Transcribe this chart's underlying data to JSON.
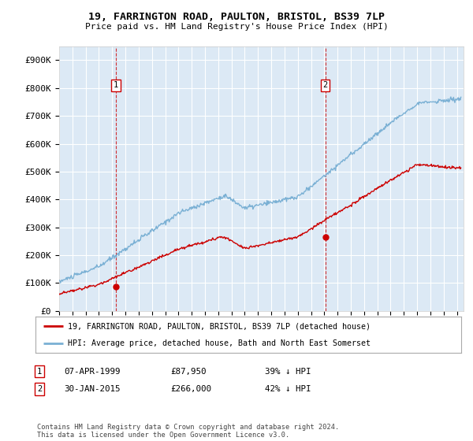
{
  "title1": "19, FARRINGTON ROAD, PAULTON, BRISTOL, BS39 7LP",
  "title2": "Price paid vs. HM Land Registry's House Price Index (HPI)",
  "ylabel_ticks": [
    "£0",
    "£100K",
    "£200K",
    "£300K",
    "£400K",
    "£500K",
    "£600K",
    "£700K",
    "£800K",
    "£900K"
  ],
  "ytick_values": [
    0,
    100000,
    200000,
    300000,
    400000,
    500000,
    600000,
    700000,
    800000,
    900000
  ],
  "ylim": [
    0,
    950000
  ],
  "xlim_start": 1995.0,
  "xlim_end": 2025.5,
  "background_color": "#dce9f5",
  "grid_color": "#ffffff",
  "red_line_color": "#cc0000",
  "blue_line_color": "#7ab0d4",
  "sale1_x": 1999.27,
  "sale1_y": 87950,
  "sale2_x": 2015.08,
  "sale2_y": 266000,
  "legend_label1": "19, FARRINGTON ROAD, PAULTON, BRISTOL, BS39 7LP (detached house)",
  "legend_label2": "HPI: Average price, detached house, Bath and North East Somerset",
  "note1_date": "07-APR-1999",
  "note1_price": "£87,950",
  "note1_hpi": "39% ↓ HPI",
  "note2_date": "30-JAN-2015",
  "note2_price": "£266,000",
  "note2_hpi": "42% ↓ HPI",
  "footer": "Contains HM Land Registry data © Crown copyright and database right 2024.\nThis data is licensed under the Open Government Licence v3.0."
}
